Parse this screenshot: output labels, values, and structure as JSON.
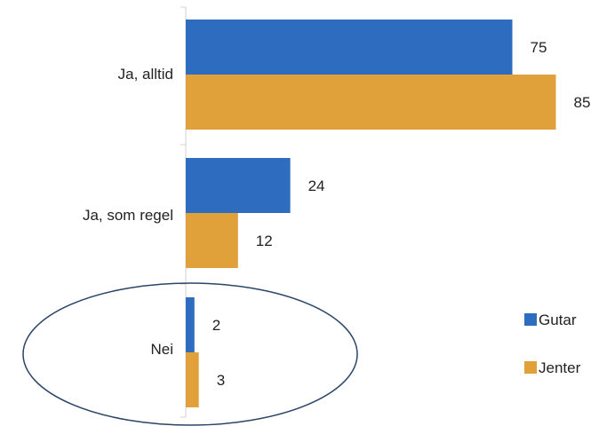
{
  "chart_data": {
    "type": "bar",
    "orientation": "horizontal",
    "categories": [
      "Ja, alltid",
      "Ja, som regel",
      "Nei"
    ],
    "series": [
      {
        "name": "Gutar",
        "values": [
          75,
          24,
          2
        ],
        "color": "#2e6cc0"
      },
      {
        "name": "Jenter",
        "values": [
          85,
          12,
          3
        ],
        "color": "#e0a03a"
      }
    ],
    "title": "",
    "xlabel": "",
    "ylabel": "",
    "xlim": [
      0,
      100
    ],
    "data_labels": true,
    "grid": false,
    "legend_position": "right",
    "annotations": [
      {
        "type": "ellipse",
        "target_category": "Nei",
        "color": "#2b4566"
      }
    ],
    "axis_color": "#d0d0d0"
  }
}
